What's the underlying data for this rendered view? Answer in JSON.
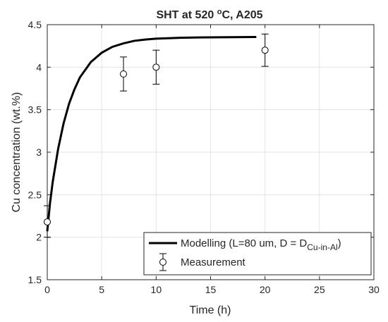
{
  "chart_data": {
    "type": "line",
    "title": "SHT at 520 °C, A205",
    "title_parts": {
      "before": "SHT at 520 ",
      "sup": "o",
      "after": "C, A205"
    },
    "xlabel": "Time (h)",
    "ylabel": "Cu concentration (wt.%)",
    "xlim": [
      0,
      30
    ],
    "ylim": [
      1.5,
      4.5
    ],
    "xticks": [
      0,
      5,
      10,
      15,
      20,
      25,
      30
    ],
    "yticks": [
      1.5,
      2,
      2.5,
      3,
      3.5,
      4,
      4.5
    ],
    "xtick_labels": [
      "0",
      "5",
      "10",
      "15",
      "20",
      "25",
      "30"
    ],
    "ytick_labels": [
      "1.5",
      "2",
      "2.5",
      "3",
      "3.5",
      "4",
      "4.5"
    ],
    "grid": true,
    "legend_position": "bottom-right",
    "series": [
      {
        "name": "Modelling (L=80 um, D = D_Cu-in-Al)",
        "legend_main": "Modelling (L=80 um, D = D",
        "legend_sub": "Cu-in-Al",
        "legend_close": ")",
        "kind": "line",
        "color": "#000000",
        "x": [
          0,
          0.25,
          0.5,
          1,
          1.5,
          2,
          2.5,
          3,
          4,
          5,
          6,
          7,
          8,
          9,
          10,
          12,
          14,
          16,
          18,
          19.2
        ],
        "y": [
          2.07,
          2.4,
          2.65,
          3.04,
          3.34,
          3.57,
          3.74,
          3.88,
          4.06,
          4.17,
          4.24,
          4.28,
          4.31,
          4.325,
          4.335,
          4.345,
          4.35,
          4.352,
          4.354,
          4.355
        ]
      },
      {
        "name": "Measurement",
        "kind": "scatter",
        "marker": "open-circle",
        "color": "#000000",
        "x": [
          0,
          7,
          10,
          20
        ],
        "y": [
          2.18,
          3.92,
          4.0,
          4.2
        ],
        "err_low": [
          2.0,
          3.72,
          3.8,
          4.01
        ],
        "err_high": [
          2.37,
          4.12,
          4.2,
          4.39
        ]
      }
    ]
  }
}
